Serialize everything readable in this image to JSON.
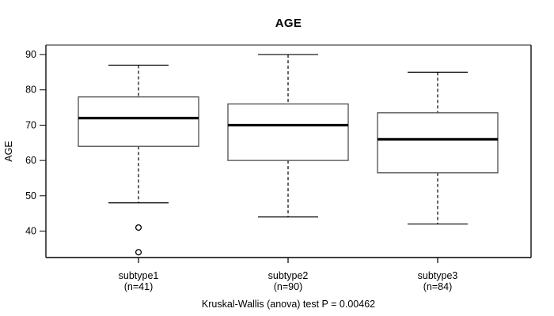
{
  "title": "AGE",
  "footnote": "Kruskal-Wallis (anova) test P = 0.00462",
  "colors": {
    "background": "#ffffff",
    "box_border": "#5a5a5a",
    "box_fill": "#ffffff",
    "whisker": "#000000",
    "median": "#000000",
    "outline_top": "#8c8c8c",
    "outline_side": "#1f1f1f",
    "text": "#000000"
  },
  "chart_data": {
    "type": "boxplot",
    "title": "AGE",
    "xlabel": "",
    "ylabel": "AGE",
    "ylim": [
      32.5,
      92.7
    ],
    "yticks": [
      40,
      50,
      60,
      70,
      80,
      90
    ],
    "grid": false,
    "legend": "none",
    "annotation": "Kruskal-Wallis (anova) test P = 0.00462",
    "groups": [
      {
        "label": "subtype1",
        "sublabel": "(n=41)",
        "n": 41,
        "whisker_low": 48,
        "q1": 64,
        "median": 72,
        "q3": 78,
        "whisker_high": 87,
        "outliers": [
          41,
          34
        ]
      },
      {
        "label": "subtype2",
        "sublabel": "(n=90)",
        "n": 90,
        "whisker_low": 44,
        "q1": 60,
        "median": 70,
        "q3": 76,
        "whisker_high": 90,
        "outliers": []
      },
      {
        "label": "subtype3",
        "sublabel": "(n=84)",
        "n": 84,
        "whisker_low": 42,
        "q1": 56.5,
        "median": 66,
        "q3": 73.5,
        "whisker_high": 85,
        "outliers": []
      }
    ]
  }
}
